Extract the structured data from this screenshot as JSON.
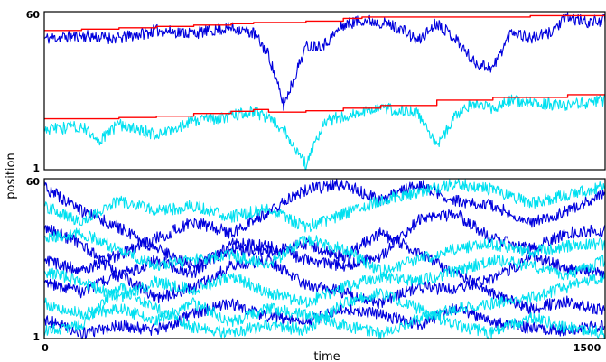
{
  "chart_data": [
    {
      "type": "line",
      "panel": "top",
      "xlabel": "",
      "ylabel": "",
      "xlim": [
        0,
        1500
      ],
      "ylim": [
        1,
        60
      ],
      "yticks": [
        "1",
        "60"
      ],
      "xticks": [],
      "grid": false,
      "series": [
        {
          "color": "#0000dd",
          "style": "random-walk",
          "x": [
            0,
            100,
            200,
            300,
            400,
            500,
            560,
            600,
            640,
            700,
            750,
            800,
            850,
            900,
            950,
            1000,
            1050,
            1100,
            1150,
            1200,
            1250,
            1300,
            1350,
            1400,
            1450,
            1500
          ],
          "values": [
            50,
            51,
            50,
            53,
            52,
            54,
            52,
            44,
            25,
            47,
            48,
            55,
            57,
            56,
            54,
            49,
            56,
            50,
            41,
            39,
            53,
            50,
            52,
            58,
            56,
            57
          ]
        },
        {
          "color": "#ff0000",
          "style": "step",
          "role": "running maximum of dark series",
          "x": [
            0,
            100,
            200,
            300,
            400,
            500,
            560,
            700,
            800,
            850,
            1300,
            1500
          ],
          "values": [
            53,
            53.5,
            54,
            54.5,
            55,
            55.5,
            56,
            56.5,
            57.5,
            58,
            58.5,
            58.5
          ]
        },
        {
          "color": "#00e0f0",
          "style": "random-walk",
          "x": [
            0,
            100,
            150,
            200,
            300,
            400,
            500,
            560,
            600,
            640,
            700,
            750,
            800,
            850,
            900,
            1000,
            1050,
            1100,
            1150,
            1200,
            1250,
            1300,
            1400,
            1500
          ],
          "values": [
            16,
            17,
            12,
            18,
            14,
            19,
            21,
            23,
            20,
            16,
            3,
            19,
            21,
            23,
            24,
            22,
            10,
            21,
            26,
            24,
            27,
            26,
            25,
            27
          ]
        },
        {
          "color": "#ff0000",
          "style": "step",
          "role": "running maximum of light series",
          "x": [
            0,
            200,
            300,
            400,
            500,
            560,
            600,
            700,
            800,
            900,
            1050,
            1200,
            1400,
            1500
          ],
          "values": [
            20,
            20.5,
            21,
            22,
            22.8,
            23.5,
            22.5,
            23,
            24,
            25,
            27,
            28,
            29,
            29
          ]
        }
      ]
    },
    {
      "type": "line",
      "panel": "bottom",
      "xlabel": "time",
      "ylabel": "position",
      "xlim": [
        0,
        1500
      ],
      "ylim": [
        1,
        60
      ],
      "xticks": [
        "0",
        "1500"
      ],
      "yticks": [
        "1",
        "60"
      ],
      "grid": false,
      "series": [
        {
          "color": "#0000dd",
          "x": [
            0,
            100,
            200,
            300,
            400,
            500,
            600,
            700,
            800,
            900,
            1000,
            1100,
            1200,
            1300,
            1400,
            1500
          ],
          "values": [
            57,
            48,
            42,
            34,
            28,
            34,
            33,
            36,
            31,
            40,
            33,
            25,
            18,
            12,
            15,
            11
          ]
        },
        {
          "color": "#0000dd",
          "x": [
            0,
            100,
            200,
            300,
            400,
            500,
            600,
            700,
            800,
            900,
            1000,
            1100,
            1200,
            1300,
            1400,
            1500
          ],
          "values": [
            42,
            36,
            24,
            30,
            25,
            36,
            35,
            30,
            28,
            31,
            45,
            47,
            38,
            34,
            40,
            41
          ]
        },
        {
          "color": "#0000dd",
          "x": [
            0,
            100,
            200,
            300,
            400,
            500,
            600,
            700,
            800,
            900,
            1000,
            1100,
            1200,
            1300,
            1400,
            1500
          ],
          "values": [
            22,
            18,
            25,
            16,
            20,
            28,
            30,
            21,
            18,
            14,
            20,
            19,
            23,
            31,
            27,
            25
          ]
        },
        {
          "color": "#0000dd",
          "x": [
            0,
            100,
            200,
            300,
            400,
            500,
            600,
            700,
            800,
            900,
            1000,
            1100,
            1200,
            1300,
            1400,
            1500
          ],
          "values": [
            8,
            3,
            6,
            4,
            10,
            14,
            9,
            7,
            12,
            10,
            6,
            12,
            7,
            5,
            4,
            6
          ]
        },
        {
          "color": "#0000dd",
          "x": [
            0,
            100,
            200,
            300,
            400,
            500,
            600,
            700,
            800,
            900,
            1000,
            1100,
            1200,
            1300,
            1400,
            1500
          ],
          "values": [
            30,
            26,
            32,
            38,
            44,
            40,
            48,
            56,
            58,
            52,
            58,
            52,
            50,
            44,
            48,
            55
          ]
        },
        {
          "color": "#00e0f0",
          "x": [
            0,
            100,
            200,
            300,
            400,
            500,
            600,
            700,
            800,
            900,
            1000,
            1100,
            1200,
            1300,
            1400,
            1500
          ],
          "values": [
            50,
            44,
            52,
            48,
            50,
            46,
            49,
            42,
            47,
            52,
            55,
            58,
            56,
            51,
            54,
            57
          ]
        },
        {
          "color": "#00e0f0",
          "x": [
            0,
            100,
            200,
            300,
            400,
            500,
            600,
            700,
            800,
            900,
            1000,
            1100,
            1200,
            1300,
            1400,
            1500
          ],
          "values": [
            38,
            40,
            34,
            28,
            30,
            32,
            28,
            38,
            34,
            26,
            30,
            34,
            36,
            33,
            35,
            36
          ]
        },
        {
          "color": "#00e0f0",
          "x": [
            0,
            100,
            200,
            300,
            400,
            500,
            600,
            700,
            800,
            900,
            1000,
            1100,
            1200,
            1300,
            1400,
            1500
          ],
          "values": [
            26,
            22,
            16,
            22,
            19,
            24,
            18,
            14,
            20,
            24,
            22,
            26,
            30,
            28,
            24,
            30
          ]
        },
        {
          "color": "#00e0f0",
          "x": [
            0,
            100,
            200,
            300,
            400,
            500,
            600,
            700,
            800,
            900,
            1000,
            1100,
            1200,
            1300,
            1400,
            1500
          ],
          "values": [
            14,
            10,
            12,
            8,
            14,
            7,
            12,
            10,
            6,
            3,
            8,
            12,
            14,
            16,
            20,
            24
          ]
        },
        {
          "color": "#00e0f0",
          "x": [
            0,
            100,
            200,
            300,
            400,
            500,
            600,
            700,
            800,
            900,
            1000,
            1100,
            1200,
            1300,
            1400,
            1500
          ],
          "values": [
            4,
            6,
            20,
            12,
            5,
            3,
            6,
            4,
            14,
            18,
            12,
            6,
            3,
            9,
            5,
            3
          ]
        }
      ]
    }
  ]
}
